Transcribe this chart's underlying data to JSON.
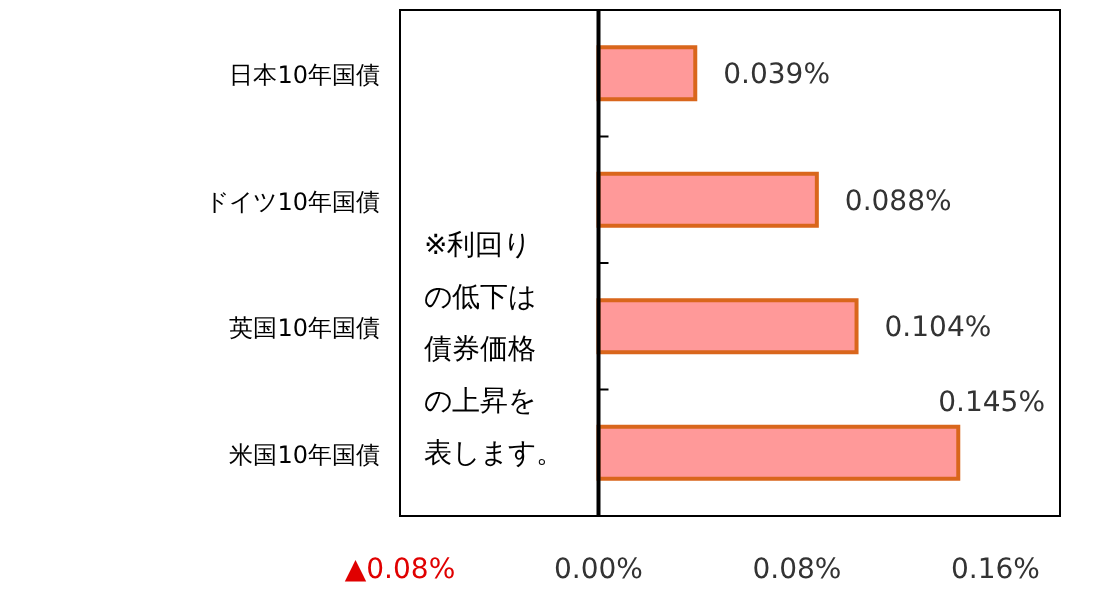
{
  "chart_data": {
    "type": "bar",
    "orientation": "horizontal",
    "categories": [
      "日本10年国債",
      "ドイツ10年国債",
      "英国10年国債",
      "米国10年国債"
    ],
    "values": [
      0.039,
      0.088,
      0.104,
      0.145
    ],
    "value_labels": [
      "0.039%",
      "0.088%",
      "0.104%",
      "0.145%"
    ],
    "color": "#ff9999",
    "xlim": [
      -0.08,
      0.186
    ],
    "xticks": [
      {
        "value": -0.08,
        "label": "▲0.08%"
      },
      {
        "value": 0,
        "label": "0.00%"
      },
      {
        "value": 0.08,
        "label": "0.08%"
      },
      {
        "value": 0.16,
        "label": "0.16%"
      }
    ],
    "annotations": [
      "※利回りの低下は債券価格の上昇を表します。"
    ]
  }
}
